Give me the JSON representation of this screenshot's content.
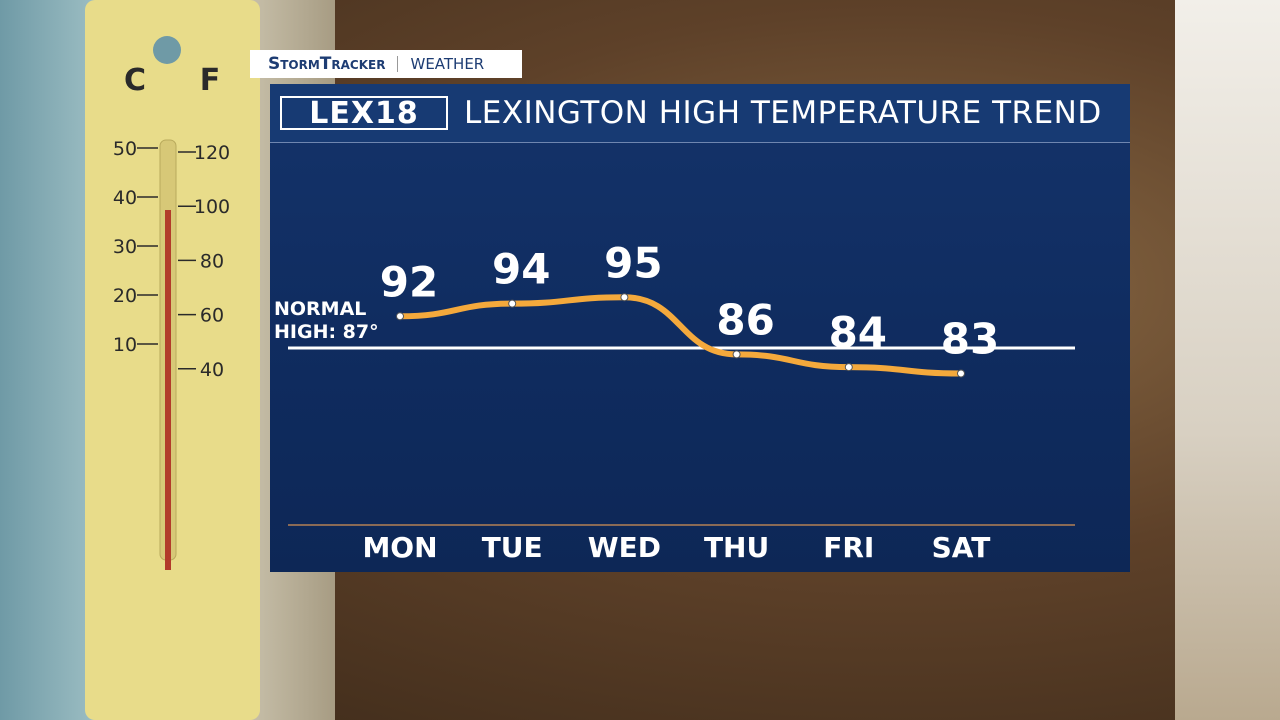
{
  "header": {
    "brand": "StormTracker",
    "section": "WEATHER",
    "logo": "LEX18"
  },
  "thermometer": {
    "celsius_label": "C",
    "fahrenheit_label": "F",
    "celsius_ticks": [
      50,
      40,
      30,
      20,
      10
    ],
    "fahrenheit_ticks": [
      120,
      100,
      80,
      60,
      40
    ]
  },
  "chart_data": {
    "type": "line",
    "title": "LEXINGTON HIGH TEMPERATURE TREND",
    "categories": [
      "MON",
      "TUE",
      "WED",
      "THU",
      "FRI",
      "SAT"
    ],
    "values": [
      92,
      94,
      95,
      86,
      84,
      83
    ],
    "color": "#f4a93c",
    "ylim": [
      70,
      110
    ],
    "normal_value": 87,
    "normal_label": "NORMAL HIGH: 87°"
  }
}
